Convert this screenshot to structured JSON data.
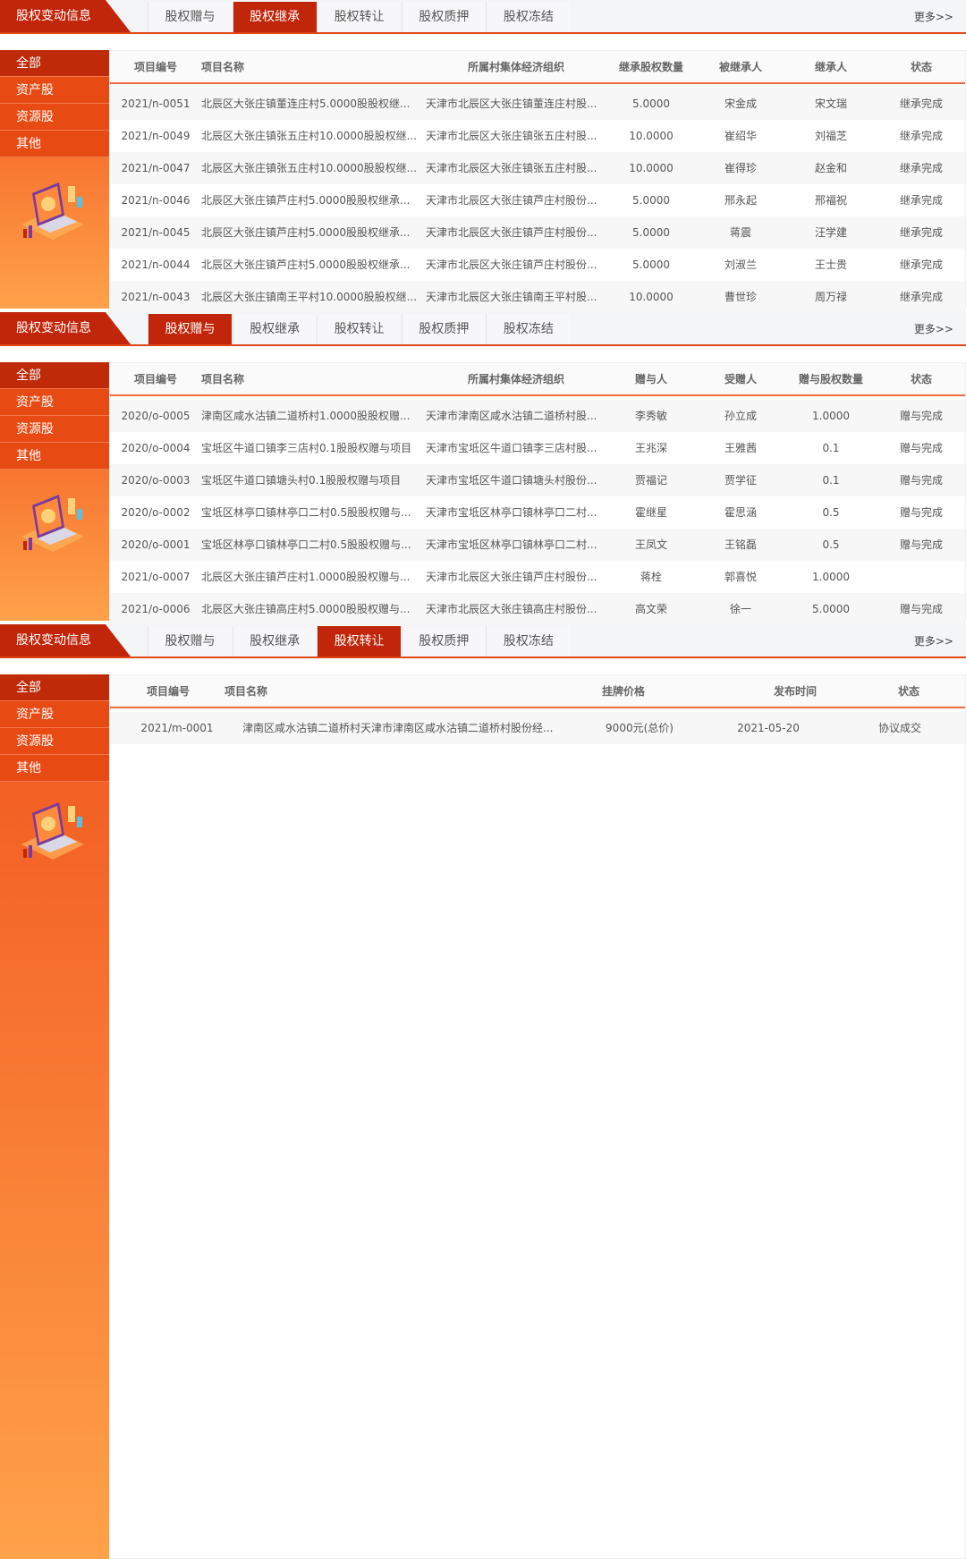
{
  "panels": [
    {
      "title": "股权变动信息",
      "tabs": [
        "股权赠与",
        "股权继承",
        "股权转让",
        "股权质押",
        "股权冻结"
      ],
      "active_tab": 1,
      "more": "更多>>",
      "side": [
        "全部",
        "资产股",
        "资源股",
        "其他"
      ],
      "columns": [
        "项目编号",
        "项目名称",
        "所属村集体经济组织",
        "继承股权数量",
        "被继承人",
        "继承人",
        "状态"
      ],
      "rows": [
        [
          "2021/n-0051",
          "北辰区大张庄镇董连庄村5.0000股股权继...",
          "天津市北辰区大张庄镇董连庄村股...",
          "5.0000",
          "宋金成",
          "宋文瑞",
          "继承完成"
        ],
        [
          "2021/n-0049",
          "北辰区大张庄镇张五庄村10.0000股股权继...",
          "天津市北辰区大张庄镇张五庄村股...",
          "10.0000",
          "崔绍华",
          "刘福芝",
          "继承完成"
        ],
        [
          "2021/n-0047",
          "北辰区大张庄镇张五庄村10.0000股股权继...",
          "天津市北辰区大张庄镇张五庄村股...",
          "10.0000",
          "崔得珍",
          "赵金和",
          "继承完成"
        ],
        [
          "2021/n-0046",
          "北辰区大张庄镇芦庄村5.0000股股权继承...",
          "天津市北辰区大张庄镇芦庄村股份...",
          "5.0000",
          "邢永起",
          "邢福祝",
          "继承完成"
        ],
        [
          "2021/n-0045",
          "北辰区大张庄镇芦庄村5.0000股股权继承...",
          "天津市北辰区大张庄镇芦庄村股份...",
          "5.0000",
          "蒋震",
          "汪学建",
          "继承完成"
        ],
        [
          "2021/n-0044",
          "北辰区大张庄镇芦庄村5.0000股股权继承...",
          "天津市北辰区大张庄镇芦庄村股份...",
          "5.0000",
          "刘淑兰",
          "王士贵",
          "继承完成"
        ],
        [
          "2021/n-0043",
          "北辰区大张庄镇南王平村10.0000股股权继...",
          "天津市北辰区大张庄镇南王平村股...",
          "10.0000",
          "曹世珍",
          "周万禄",
          "继承完成"
        ]
      ]
    },
    {
      "title": "股权变动信息",
      "tabs": [
        "股权赠与",
        "股权继承",
        "股权转让",
        "股权质押",
        "股权冻结"
      ],
      "active_tab": 0,
      "more": "更多>>",
      "side": [
        "全部",
        "资产股",
        "资源股",
        "其他"
      ],
      "columns": [
        "项目编号",
        "项目名称",
        "所属村集体经济组织",
        "赠与人",
        "受赠人",
        "赠与股权数量",
        "状态"
      ],
      "rows": [
        [
          "2020/o-0005",
          "津南区咸水沽镇二道桥村1.0000股股权赠...",
          "天津市津南区咸水沽镇二道桥村股...",
          "李秀敏",
          "孙立成",
          "1.0000",
          "赠与完成"
        ],
        [
          "2020/o-0004",
          "宝坻区牛道口镇李三店村0.1股股权赠与项目",
          "天津市宝坻区牛道口镇李三店村股...",
          "王兆深",
          "王雅茜",
          "0.1",
          "赠与完成"
        ],
        [
          "2020/o-0003",
          "宝坻区牛道口镇塘头村0.1股股权赠与项目",
          "天津市宝坻区牛道口镇塘头村股份...",
          "贾福记",
          "贾学征",
          "0.1",
          "赠与完成"
        ],
        [
          "2020/o-0002",
          "宝坻区林亭口镇林亭口二村0.5股股权赠与...",
          "天津市宝坻区林亭口镇林亭口二村...",
          "霍继星",
          "霍思涵",
          "0.5",
          "赠与完成"
        ],
        [
          "2020/o-0001",
          "宝坻区林亭口镇林亭口二村0.5股股权赠与...",
          "天津市宝坻区林亭口镇林亭口二村...",
          "王凤文",
          "王铭磊",
          "0.5",
          "赠与完成"
        ],
        [
          "2021/o-0007",
          "北辰区大张庄镇芦庄村1.0000股股权赠与...",
          "天津市北辰区大张庄镇芦庄村股份...",
          "蒋栓",
          "郭喜悦",
          "1.0000",
          ""
        ],
        [
          "2021/o-0006",
          "北辰区大张庄镇高庄村5.0000股股权赠与...",
          "天津市北辰区大张庄镇高庄村股份...",
          "高文荣",
          "徐一",
          "5.0000",
          "赠与完成"
        ]
      ]
    },
    {
      "title": "股权变动信息",
      "tabs": [
        "股权赠与",
        "股权继承",
        "股权转让",
        "股权质押",
        "股权冻结"
      ],
      "active_tab": 2,
      "more": "更多>>",
      "side": [
        "全部",
        "资产股",
        "资源股",
        "其他"
      ],
      "columns": [
        "项目编号",
        "项目名称",
        "挂牌价格",
        "发布时间",
        "状态"
      ],
      "rows": [
        [
          "2021/m-0001",
          "津南区咸水沽镇二道桥村天津市津南区咸水沽镇二道桥村股份经...",
          "9000元(总价)",
          "2021-05-20",
          "协议成交"
        ]
      ]
    }
  ],
  "colors": {
    "accent": "#c1260a",
    "orange": "#e84a14",
    "line": "#ee6a3c"
  }
}
